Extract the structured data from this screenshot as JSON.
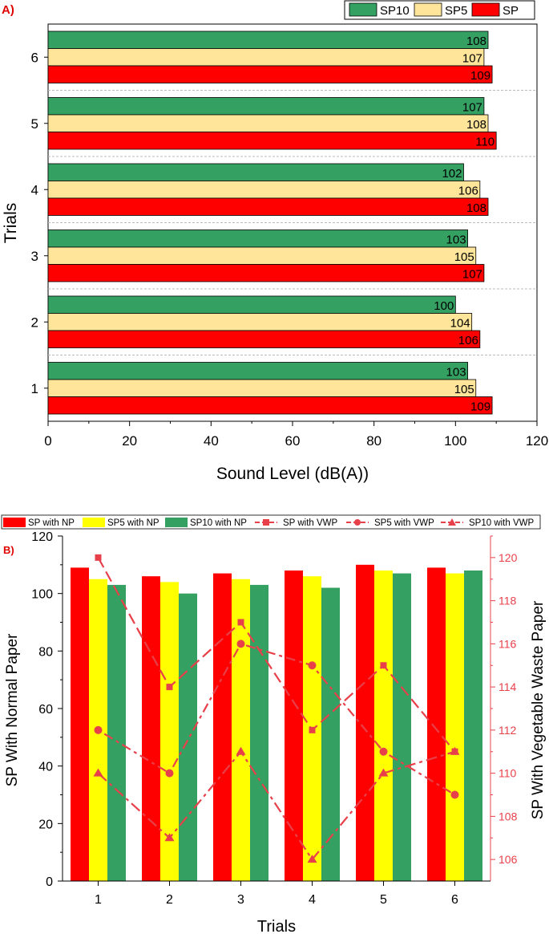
{
  "colors": {
    "SP": "#ff0000",
    "SP5": "#ffe599",
    "SP10": "#34a163",
    "SP5_b": "#ffff00",
    "line": "#e8404a",
    "panel_label": "#e00000"
  },
  "chart_data": [
    {
      "type": "bar",
      "orientation": "horizontal",
      "panel_label": "A)",
      "categories": [
        "1",
        "2",
        "3",
        "4",
        "5",
        "6"
      ],
      "series": [
        {
          "name": "SP",
          "values": [
            109,
            106,
            107,
            108,
            110,
            109
          ]
        },
        {
          "name": "SP5",
          "values": [
            105,
            104,
            105,
            106,
            108,
            107
          ]
        },
        {
          "name": "SP10",
          "values": [
            103,
            100,
            103,
            102,
            107,
            108
          ]
        }
      ],
      "legend": [
        "SP10",
        "SP5",
        "SP"
      ],
      "xlabel": "Sound Level (dB(A))",
      "ylabel": "Trials",
      "xlim": [
        0,
        120
      ],
      "xticks": [
        "0",
        "20",
        "40",
        "60",
        "80",
        "100",
        "120"
      ],
      "legend_position": "top-right"
    },
    {
      "type": "bar+line",
      "panel_label": "B)",
      "categories": [
        "1",
        "2",
        "3",
        "4",
        "5",
        "6"
      ],
      "bar_series": [
        {
          "name": "SP with NP",
          "values": [
            109,
            106,
            107,
            108,
            110,
            109
          ]
        },
        {
          "name": "SP5 with NP",
          "values": [
            105,
            104,
            105,
            106,
            108,
            107
          ]
        },
        {
          "name": "SP10 with NP",
          "values": [
            103,
            100,
            103,
            102,
            107,
            108
          ]
        }
      ],
      "line_series": [
        {
          "name": "SP with VWP",
          "marker": "square",
          "values": [
            120,
            114,
            117,
            112,
            115,
            111
          ]
        },
        {
          "name": "SP5 with VWP",
          "marker": "circle",
          "values": [
            112,
            110,
            116,
            115,
            111,
            109
          ]
        },
        {
          "name": "SP10 with VWP",
          "marker": "triangle",
          "values": [
            110,
            107,
            111,
            106,
            110,
            111
          ]
        }
      ],
      "xlabel": "Trials",
      "ylabel_left": "SP With Normal Paper",
      "ylabel_right": "SP With Vegetable Waste Paper",
      "ylim_left": [
        0,
        120
      ],
      "ylim_right": [
        105,
        121
      ],
      "yticks_left": [
        "0",
        "20",
        "40",
        "60",
        "80",
        "100",
        "120"
      ],
      "yticks_right": [
        "106",
        "108",
        "110",
        "112",
        "114",
        "116",
        "118",
        "120"
      ],
      "legend_position": "top"
    }
  ]
}
